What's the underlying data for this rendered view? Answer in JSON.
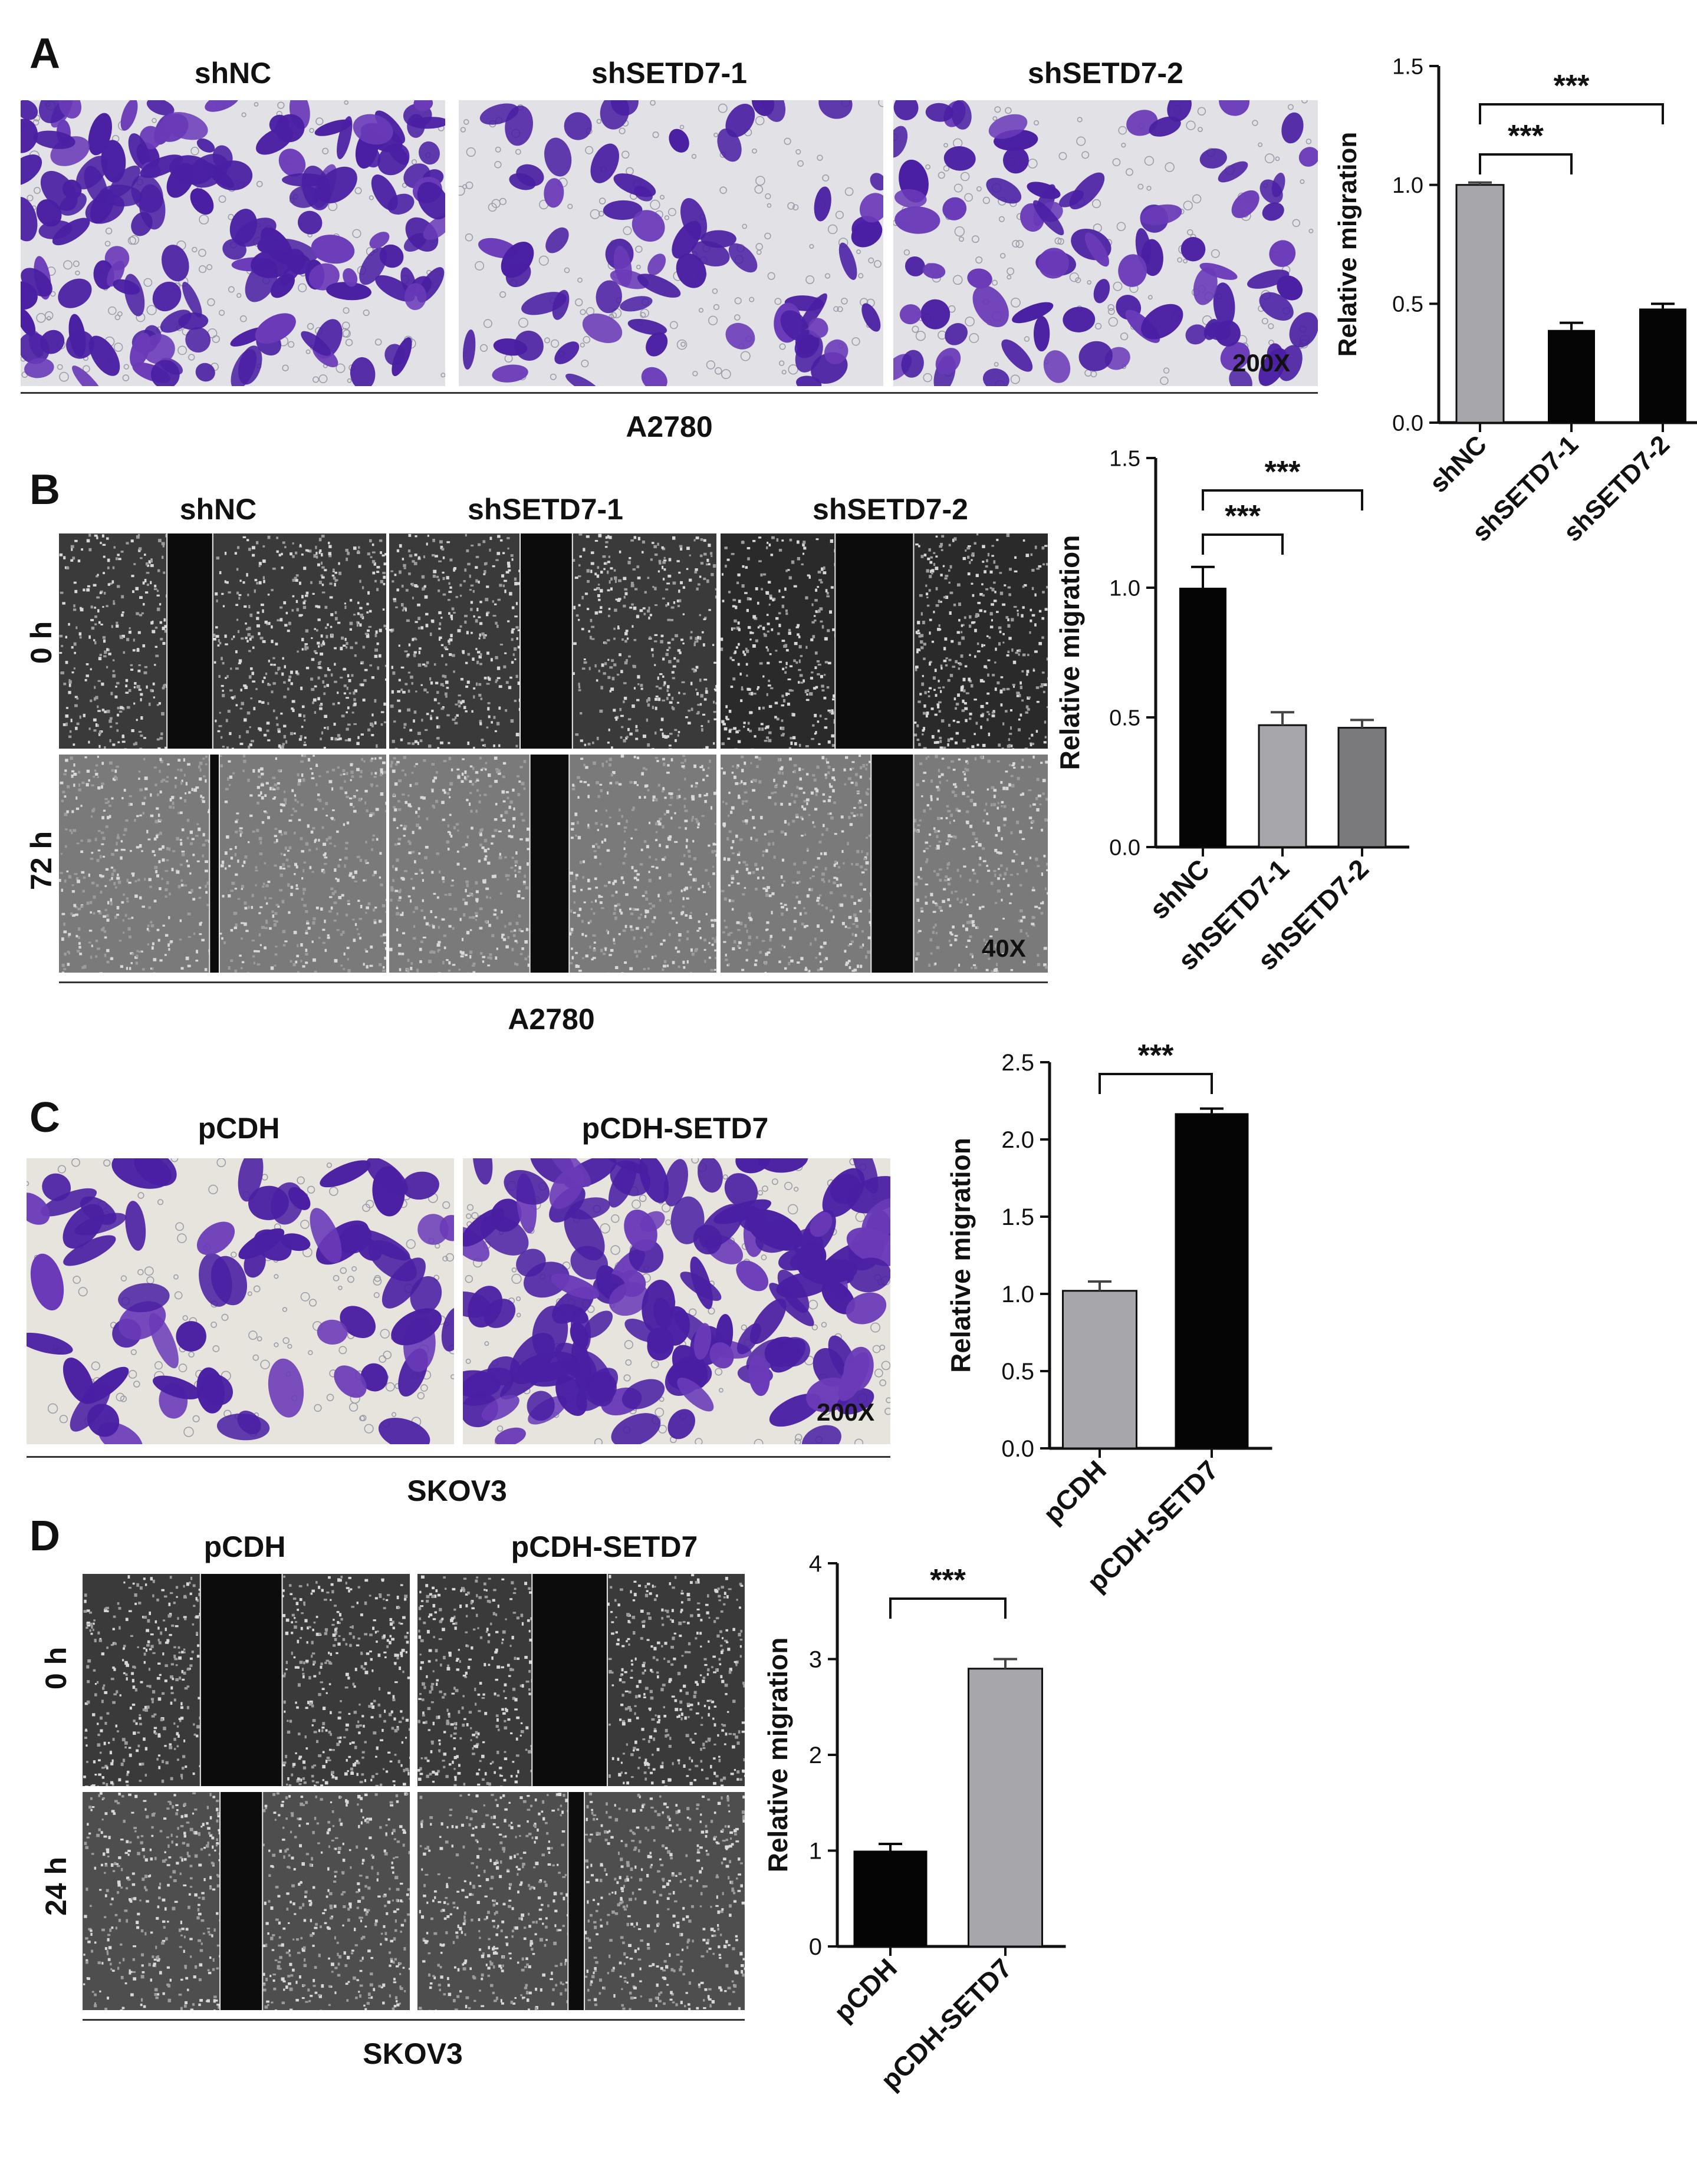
{
  "panels": {
    "A": {
      "label": "A",
      "conditions": [
        "shNC",
        "shSETD7-1",
        "shSETD7-2"
      ],
      "magnification": "200X",
      "cell_line": "A2780"
    },
    "B": {
      "label": "B",
      "conditions": [
        "shNC",
        "shSETD7-1",
        "shSETD7-2"
      ],
      "rows": [
        "0 h",
        "72 h"
      ],
      "magnification": "40X",
      "cell_line": "A2780"
    },
    "C": {
      "label": "C",
      "conditions": [
        "pCDH",
        "pCDH-SETD7"
      ],
      "magnification": "200X",
      "cell_line": "SKOV3"
    },
    "D": {
      "label": "D",
      "conditions": [
        "pCDH",
        "pCDH-SETD7"
      ],
      "rows": [
        "0 h",
        "24 h"
      ],
      "cell_line": "SKOV3"
    }
  },
  "colors": {
    "gray_bar": "#a7a7ab",
    "black_bar": "#050505",
    "dark_gray_bar": "#7a7a7c",
    "crystal_violet": "#4b1fa0",
    "scratch_bg": "#1a1a1a"
  },
  "chart_data": [
    {
      "id": "A",
      "type": "bar",
      "categories": [
        "shNC",
        "shSETD7-1",
        "shSETD7-2"
      ],
      "values": [
        1.0,
        0.39,
        0.48
      ],
      "errors": [
        0.01,
        0.03,
        0.02
      ],
      "bar_colors": [
        "#a7a7ab",
        "#050505",
        "#050505"
      ],
      "ylabel": "Relative migration",
      "ylim": [
        0,
        1.5
      ],
      "yticks": [
        "0.0",
        "0.5",
        "1.0",
        "1.5"
      ],
      "significance": [
        {
          "from": 0,
          "to": 1,
          "label": "***"
        },
        {
          "from": 0,
          "to": 2,
          "label": "***"
        }
      ]
    },
    {
      "id": "B",
      "type": "bar",
      "categories": [
        "shNC",
        "shSETD7-1",
        "shSETD7-2"
      ],
      "values": [
        1.0,
        0.47,
        0.46
      ],
      "errors": [
        0.08,
        0.05,
        0.03
      ],
      "bar_colors": [
        "#050505",
        "#a7a7ab",
        "#7a7a7c"
      ],
      "ylabel": "Relative migration",
      "ylim": [
        0,
        1.5
      ],
      "yticks": [
        "0.0",
        "0.5",
        "1.0",
        "1.5"
      ],
      "significance": [
        {
          "from": 0,
          "to": 1,
          "label": "***"
        },
        {
          "from": 0,
          "to": 2,
          "label": "***"
        }
      ]
    },
    {
      "id": "C",
      "type": "bar",
      "categories": [
        "pCDH",
        "pCDH-SETD7"
      ],
      "values": [
        1.02,
        2.17
      ],
      "errors": [
        0.06,
        0.03
      ],
      "bar_colors": [
        "#a7a7ab",
        "#050505"
      ],
      "ylabel": "Relative migration",
      "ylim": [
        0,
        2.5
      ],
      "yticks": [
        "0.0",
        "0.5",
        "1.0",
        "1.5",
        "2.0",
        "2.5"
      ],
      "significance": [
        {
          "from": 0,
          "to": 1,
          "label": "***"
        }
      ]
    },
    {
      "id": "D",
      "type": "bar",
      "categories": [
        "pCDH",
        "pCDH-SETD7"
      ],
      "values": [
        1.0,
        2.9
      ],
      "errors": [
        0.07,
        0.1
      ],
      "bar_colors": [
        "#050505",
        "#a7a7ab"
      ],
      "ylabel": "Relative migration",
      "ylim": [
        0,
        4
      ],
      "yticks": [
        "0",
        "1",
        "2",
        "3",
        "4"
      ],
      "significance": [
        {
          "from": 0,
          "to": 1,
          "label": "***"
        }
      ]
    }
  ]
}
